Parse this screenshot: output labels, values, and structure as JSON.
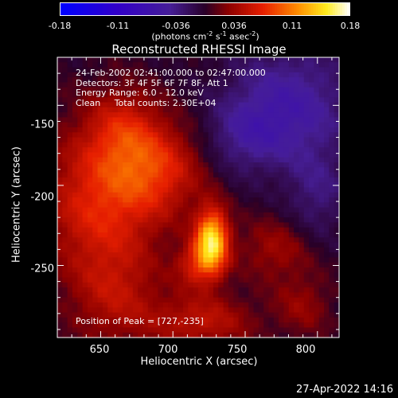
{
  "chart_data": {
    "type": "heatmap",
    "title": "Reconstructed RHESSI Image",
    "xlabel": "Heliocentric X (arcsec)",
    "ylabel": "Heliocentric Y (arcsec)",
    "xlim": [
      620,
      815
    ],
    "ylim": [
      -295,
      -120
    ],
    "x_ticks": [
      650,
      700,
      750,
      800
    ],
    "y_ticks": [
      -150,
      -200,
      -250
    ],
    "colorbar": {
      "range": [
        -0.18,
        0.18
      ],
      "ticks": [
        "-0.18",
        "-0.11",
        "-0.036",
        "0.036",
        "0.11",
        "0.18"
      ],
      "units_text": "(photons cm",
      "units_exp1": "-2",
      "units_mid": " s",
      "units_exp2": "-1",
      "units_tail": " asec",
      "units_exp3": "-2",
      "units_close": ")"
    },
    "info_lines": [
      "24-Feb-2002 02:41:00.000 to 02:47:00.000",
      "Detectors: 3F 4F 5F 6F 7F 8F, Att 1",
      "Energy Range: 6.0 - 12.0 keV",
      "Clean     Total counts: 2.30E+04"
    ],
    "peak_label": "Position of Peak = [727,-235]",
    "peak": {
      "x": 727,
      "y": -235,
      "value": 0.18
    },
    "blobs": [
      {
        "x": 727,
        "y": -235,
        "sx": 8,
        "sy": 14,
        "amp": 0.15
      },
      {
        "x": 715,
        "y": -250,
        "sx": 10,
        "sy": 10,
        "amp": 0.05
      },
      {
        "x": 650,
        "y": -210,
        "sx": 28,
        "sy": 32,
        "amp": 0.07
      },
      {
        "x": 690,
        "y": -190,
        "sx": 22,
        "sy": 20,
        "amp": 0.06
      },
      {
        "x": 665,
        "y": -165,
        "sx": 18,
        "sy": 18,
        "amp": 0.045
      },
      {
        "x": 720,
        "y": -285,
        "sx": 25,
        "sy": 12,
        "amp": 0.05
      },
      {
        "x": 660,
        "y": -270,
        "sx": 22,
        "sy": 22,
        "amp": 0.04
      },
      {
        "x": 770,
        "y": -240,
        "sx": 18,
        "sy": 14,
        "amp": 0.035
      },
      {
        "x": 790,
        "y": -275,
        "sx": 14,
        "sy": 14,
        "amp": 0.03
      },
      {
        "x": 780,
        "y": -150,
        "sx": 30,
        "sy": 25,
        "amp": -0.055
      },
      {
        "x": 750,
        "y": -170,
        "sx": 20,
        "sy": 15,
        "amp": -0.03
      },
      {
        "x": 800,
        "y": -205,
        "sx": 15,
        "sy": 20,
        "amp": -0.03
      }
    ],
    "colors": {
      "min": "#0000ff",
      "max": "#ffffff",
      "background": "#000000"
    }
  },
  "timestamp": "27-Apr-2022 14:16"
}
